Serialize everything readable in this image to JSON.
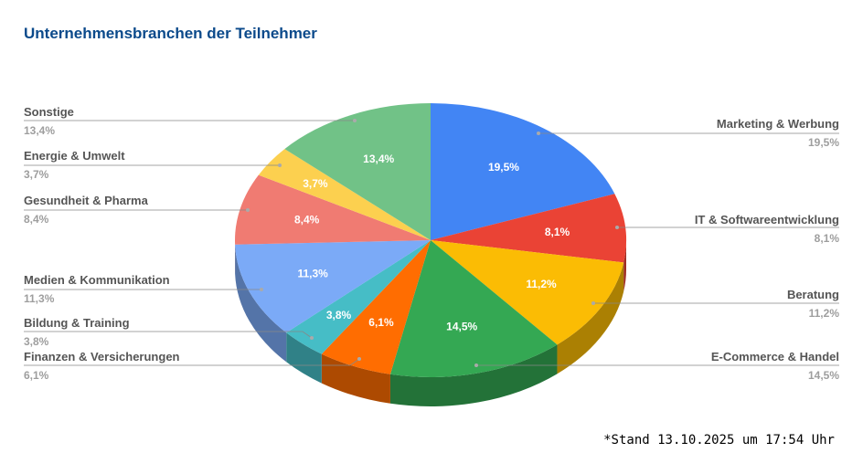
{
  "chart_data": {
    "type": "pie",
    "style": "3d",
    "title": "Unternehmensbranchen der Teilnehmer",
    "legend": "labels with leader lines",
    "slices": [
      {
        "label": "Marketing & Werbung",
        "value": 19.5,
        "display": "19,5%",
        "color": "#4285f4"
      },
      {
        "label": "IT & Softwareentwicklung",
        "value": 8.1,
        "display": "8,1%",
        "color": "#ea4335"
      },
      {
        "label": "Beratung",
        "value": 11.2,
        "display": "11,2%",
        "color": "#fbbc04"
      },
      {
        "label": "E-Commerce & Handel",
        "value": 14.5,
        "display": "14,5%",
        "color": "#34a853"
      },
      {
        "label": "Finanzen & Versicherungen",
        "value": 6.1,
        "display": "6,1%",
        "color": "#ff6d01"
      },
      {
        "label": "Bildung & Training",
        "value": 3.8,
        "display": "3,8%",
        "color": "#46bdc6"
      },
      {
        "label": "Medien & Kommunikation",
        "value": 11.3,
        "display": "11,3%",
        "color": "#7baaf7"
      },
      {
        "label": "Gesundheit & Pharma",
        "value": 8.4,
        "display": "8,4%",
        "color": "#f07b72"
      },
      {
        "label": "Energie & Umwelt",
        "value": 3.7,
        "display": "3,7%",
        "color": "#fcd04f"
      },
      {
        "label": "Sonstige",
        "value": 13.4,
        "display": "13,4%",
        "color": "#71c287"
      }
    ]
  },
  "footnote": "*Stand 13.10.2025 um 17:54 Uhr"
}
